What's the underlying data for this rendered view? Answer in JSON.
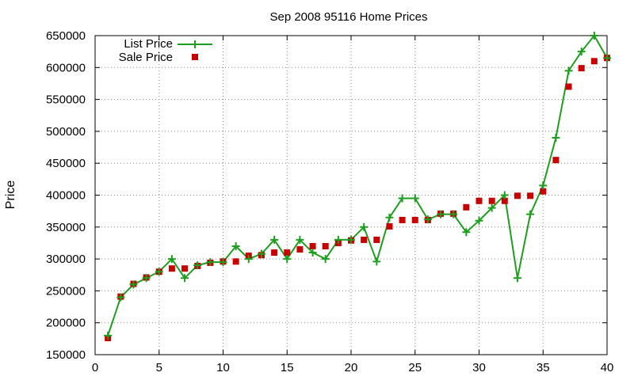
{
  "chart_data": {
    "type": "line",
    "title": "Sep 2008 95116 Home Prices",
    "xlabel": "",
    "ylabel": "Price",
    "xlim": [
      0,
      40
    ],
    "ylim": [
      150000,
      650000
    ],
    "x_ticks": [
      0,
      5,
      10,
      15,
      20,
      25,
      30,
      35,
      40
    ],
    "y_ticks": [
      150000,
      200000,
      250000,
      300000,
      350000,
      400000,
      450000,
      500000,
      550000,
      600000,
      650000
    ],
    "grid": true,
    "legend_position": "top-left",
    "colors": {
      "list": "#1e9e1e",
      "sale": "#c80000"
    },
    "series": [
      {
        "name": "List Price",
        "style": "line-with-plus-markers",
        "x": [
          1,
          2,
          3,
          4,
          5,
          6,
          7,
          8,
          9,
          10,
          11,
          12,
          13,
          14,
          15,
          16,
          17,
          18,
          19,
          20,
          21,
          22,
          23,
          24,
          25,
          26,
          27,
          28,
          29,
          30,
          31,
          32,
          33,
          34,
          35,
          36,
          37,
          38,
          39,
          40
        ],
        "values": [
          180000,
          240000,
          260000,
          270000,
          280000,
          300000,
          270000,
          290000,
          295000,
          295000,
          320000,
          300000,
          308000,
          330000,
          300000,
          330000,
          310000,
          300000,
          330000,
          330000,
          350000,
          296000,
          365000,
          395000,
          395000,
          362000,
          370000,
          370000,
          342000,
          360000,
          380000,
          400000,
          270000,
          370000,
          415000,
          490000,
          595000,
          625000,
          650000,
          615000
        ]
      },
      {
        "name": "Sale Price",
        "style": "square-markers",
        "x": [
          1,
          2,
          3,
          4,
          5,
          6,
          7,
          8,
          9,
          10,
          11,
          12,
          13,
          14,
          15,
          16,
          17,
          18,
          19,
          20,
          21,
          22,
          23,
          24,
          25,
          26,
          27,
          28,
          29,
          30,
          31,
          32,
          33,
          34,
          35,
          36,
          37,
          38,
          39,
          40
        ],
        "values": [
          176000,
          241000,
          261000,
          271000,
          280000,
          285000,
          285000,
          289000,
          294000,
          296000,
          296000,
          305000,
          306000,
          310000,
          310000,
          315000,
          320000,
          320000,
          325000,
          329000,
          330000,
          330000,
          351000,
          361000,
          361000,
          361000,
          371000,
          371000,
          381000,
          391000,
          391000,
          391000,
          399000,
          399000,
          406000,
          455000,
          570000,
          599000,
          610000,
          615000
        ]
      }
    ]
  }
}
